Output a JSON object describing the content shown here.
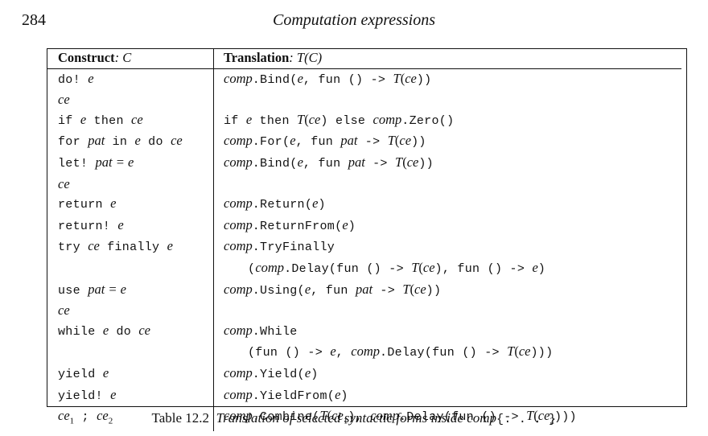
{
  "header": {
    "page_number": "284",
    "running_title": "Computation expressions"
  },
  "table": {
    "head_construct_bold": "Construct",
    "head_construct_rest": ": C",
    "head_translation_bold": "Translation",
    "head_translation_rest": ": T(C)",
    "rows": [
      {
        "construct": [
          "do! ",
          "e"
        ],
        "translation": [
          "comp",
          ".Bind(",
          "e",
          ", fun () -> ",
          "T(",
          "ce",
          "))"
        ]
      },
      {
        "construct": [
          "ce"
        ],
        "translation": []
      },
      {
        "construct": [
          "if ",
          "e",
          " then ",
          "ce"
        ],
        "translation": [
          "if ",
          "e",
          " then ",
          "T(",
          "ce",
          ") else ",
          "comp",
          ".Zero()"
        ]
      },
      {
        "construct": [
          "for ",
          "pat",
          " in ",
          "e",
          " do ",
          "ce"
        ],
        "translation": [
          "comp",
          ".For(",
          "e",
          ", fun ",
          "pat",
          " -> ",
          "T(",
          "ce",
          "))"
        ]
      },
      {
        "construct": [
          "let! ",
          "pat = e"
        ],
        "translation": [
          "comp",
          ".Bind(",
          "e",
          ", fun ",
          "pat",
          " -> ",
          "T(",
          "ce",
          "))"
        ]
      },
      {
        "construct": [
          "ce"
        ],
        "translation": []
      },
      {
        "construct": [
          "return ",
          "e"
        ],
        "translation": [
          "comp",
          ".Return(",
          "e",
          ")"
        ]
      },
      {
        "construct": [
          "return! ",
          "e"
        ],
        "translation": [
          "comp",
          ".ReturnFrom(",
          "e",
          ")"
        ]
      },
      {
        "construct": [
          "try ",
          "ce",
          " finally ",
          "e"
        ],
        "translation": [
          "comp",
          ".TryFinally"
        ]
      },
      {
        "construct": [],
        "translation": [
          "(",
          "comp",
          ".Delay(fun () -> ",
          "T(",
          "ce",
          "), fun () -> ",
          "e",
          ")"
        ],
        "indent": true
      },
      {
        "construct": [
          "use ",
          "pat = e"
        ],
        "translation": [
          "comp",
          ".Using(",
          "e",
          ", fun ",
          "pat",
          " -> ",
          "T(",
          "ce",
          "))"
        ]
      },
      {
        "construct": [
          "ce"
        ],
        "translation": []
      },
      {
        "construct": [
          "while ",
          "e",
          " do ",
          "ce"
        ],
        "translation": [
          "comp",
          ".While"
        ]
      },
      {
        "construct": [],
        "translation": [
          "(fun () -> ",
          "e",
          ", ",
          "comp",
          ".Delay(fun () -> ",
          "T(",
          "ce",
          ")))"
        ],
        "indent": true
      },
      {
        "construct": [
          "yield ",
          "e"
        ],
        "translation": [
          "comp",
          ".Yield(",
          "e",
          ")"
        ]
      },
      {
        "construct": [
          "yield! ",
          "e"
        ],
        "translation": [
          "comp",
          ".YieldFrom(",
          "e",
          ")"
        ]
      },
      {
        "construct": [
          "ce1",
          " ; ",
          "ce2"
        ],
        "translation": [
          "comp",
          ".Combine(",
          "T(",
          "ce1",
          "), ",
          "comp",
          ".Delay(fun () -> ",
          "T(",
          "ce2",
          ")))"
        ]
      }
    ]
  },
  "caption": {
    "label": "Table 12.2",
    "description": "Translation of selected syntactic forms inside comp",
    "suffix": "{. . . }"
  }
}
